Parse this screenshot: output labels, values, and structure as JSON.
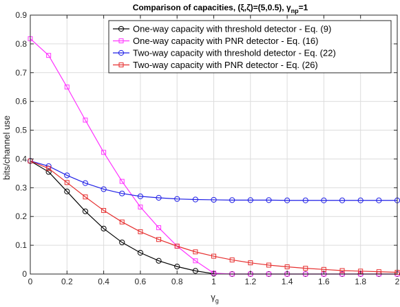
{
  "chart_data": {
    "type": "line",
    "title": "Comparison of capacities, (ξ,ζ)=(5,0.5), γ",
    "title_sub": "np",
    "title_tail": "=1",
    "xlabel": "γ",
    "xlabel_sub": "g",
    "ylabel": "bits/channel use",
    "xlim": [
      0,
      2
    ],
    "ylim": [
      0,
      0.9
    ],
    "xticks": [
      0,
      0.2,
      0.4,
      0.6,
      0.8,
      1,
      1.2,
      1.4,
      1.6,
      1.8,
      2
    ],
    "xtick_labels": [
      "0",
      "0.2",
      "0.4",
      "0.6",
      "0.8",
      "1",
      "1.2",
      "1.4",
      "1.6",
      "1.8",
      "2"
    ],
    "yticks": [
      0,
      0.1,
      0.2,
      0.3,
      0.4,
      0.5,
      0.6,
      0.7,
      0.8,
      0.9
    ],
    "ytick_labels": [
      "0",
      "0.1",
      "0.2",
      "0.3",
      "0.4",
      "0.5",
      "0.6",
      "0.7",
      "0.8",
      "0.9"
    ],
    "grid": true,
    "legend_position": "top-right",
    "x": [
      0,
      0.1,
      0.2,
      0.3,
      0.4,
      0.5,
      0.6,
      0.7,
      0.8,
      0.9,
      1.0,
      1.1,
      1.2,
      1.3,
      1.4,
      1.5,
      1.6,
      1.7,
      1.8,
      1.9,
      2.0
    ],
    "series": [
      {
        "name": "One-way capacity with threshold detector - Eq. (9)",
        "color": "#000000",
        "marker": "circle",
        "values": [
          0.393,
          0.355,
          0.287,
          0.218,
          0.158,
          0.11,
          0.074,
          0.046,
          0.026,
          0.011,
          0.001,
          0.0,
          0.0,
          0.0,
          0.0,
          0.0,
          0.0,
          0.0,
          0.0,
          0.0,
          0.0
        ]
      },
      {
        "name": "One-way capacity with PNR detector - Eq. (16)",
        "color": "#ff33ff",
        "marker": "square",
        "values": [
          0.818,
          0.76,
          0.65,
          0.535,
          0.423,
          0.322,
          0.233,
          0.161,
          0.097,
          0.046,
          0.003,
          0.0,
          0.0,
          0.0,
          0.0,
          0.0,
          0.0,
          0.0,
          0.0,
          0.0,
          0.0
        ]
      },
      {
        "name": "Two-way capacity with threshold detector - Eq. (22)",
        "color": "#1f1fe6",
        "marker": "circle",
        "values": [
          0.393,
          0.375,
          0.343,
          0.316,
          0.295,
          0.28,
          0.27,
          0.265,
          0.261,
          0.259,
          0.258,
          0.257,
          0.257,
          0.257,
          0.256,
          0.256,
          0.256,
          0.256,
          0.256,
          0.256,
          0.256
        ]
      },
      {
        "name": "Two-way capacity  with PNR detector - Eq. (26)",
        "color": "#e62e2e",
        "marker": "square",
        "values": [
          0.393,
          0.367,
          0.318,
          0.268,
          0.221,
          0.181,
          0.147,
          0.12,
          0.097,
          0.077,
          0.062,
          0.049,
          0.039,
          0.031,
          0.025,
          0.02,
          0.016,
          0.012,
          0.01,
          0.008,
          0.006
        ]
      }
    ]
  }
}
